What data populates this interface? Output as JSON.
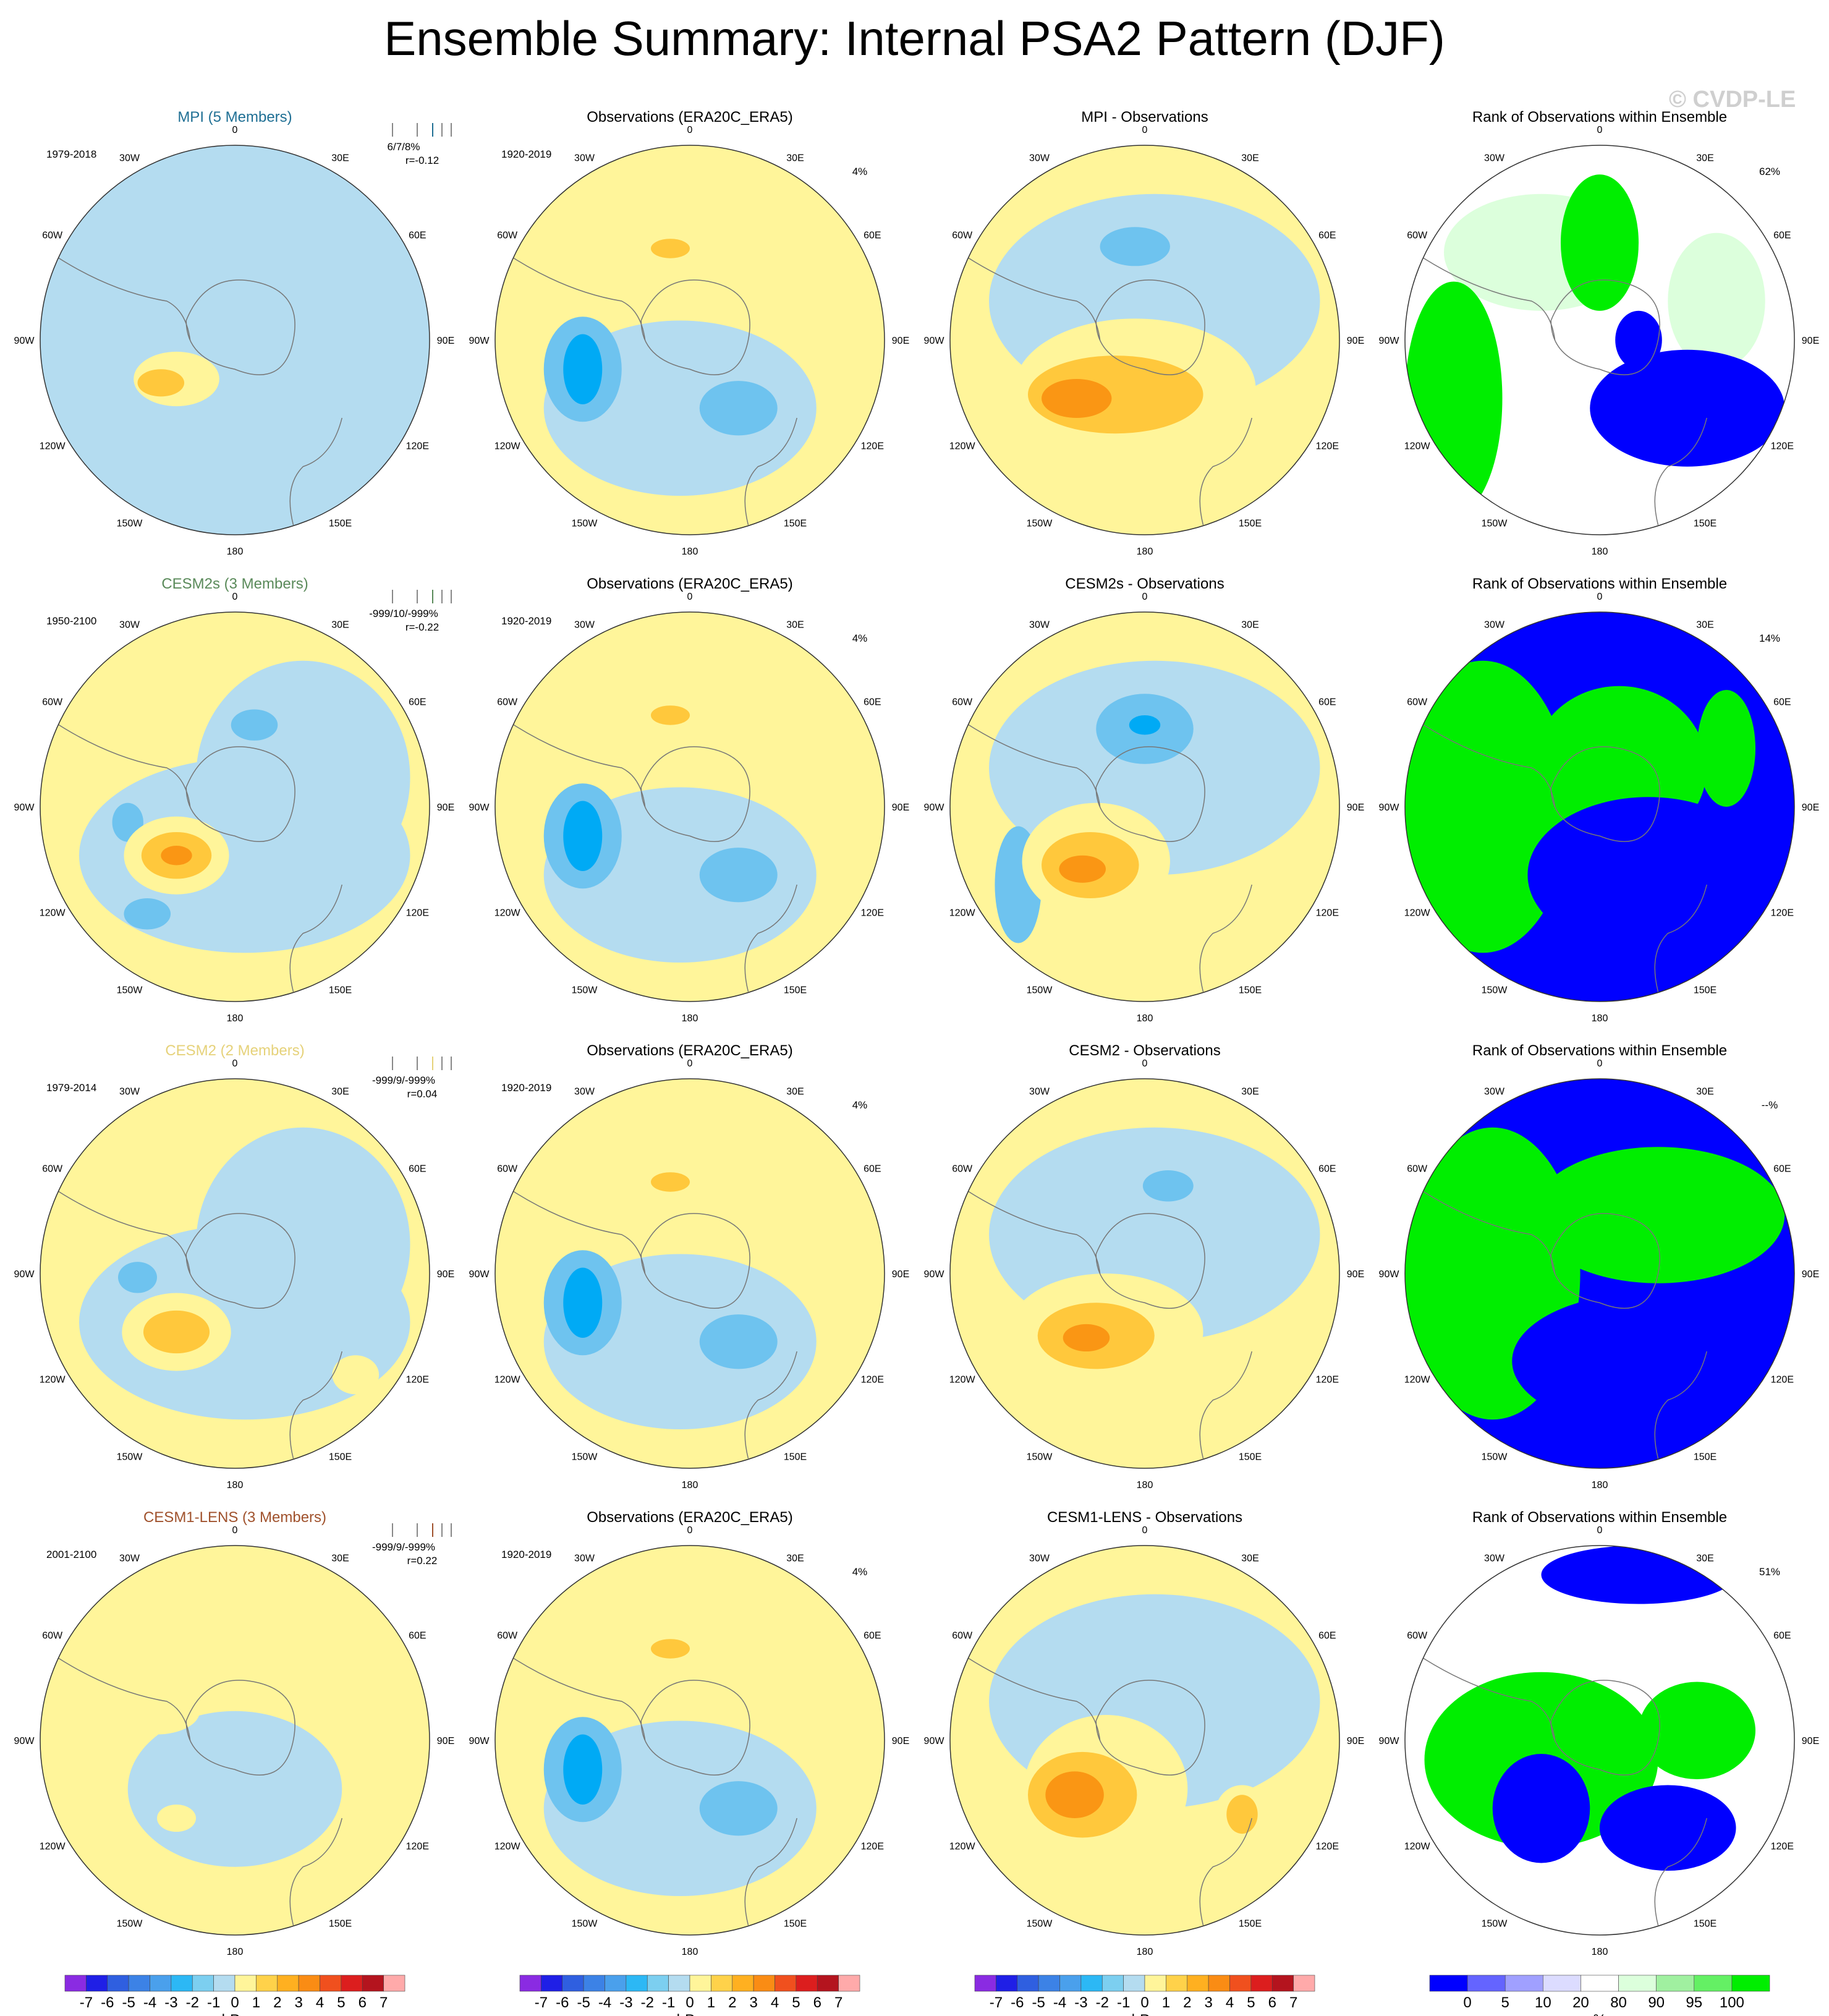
{
  "title": "Ensemble Summary: Internal PSA2 Pattern (DJF)",
  "watermark": "© CVDP-LE",
  "lon_labels": [
    "0",
    "30E",
    "60E",
    "90E",
    "120E",
    "150E",
    "180",
    "150W",
    "120W",
    "90W",
    "60W",
    "30W"
  ],
  "colors": {
    "model_text": [
      "#1f6f94",
      "#5a8a5a",
      "#e6d27a",
      "#a0522d"
    ],
    "rank_blue": "#0000ff",
    "rank_green": "#00ee00",
    "rank_palegreen": "#dcffdc",
    "ocean_neg1": "#b4dcf0",
    "pos1": "#fff59a",
    "pos2": "#ffc83c",
    "pos3": "#fa9614",
    "neg2": "#6ec3ef",
    "neg3": "#00aaf5",
    "neg4": "#4a90d9"
  },
  "rows": [
    {
      "model": {
        "title": "MPI (5 Members)",
        "years": "1979-2018",
        "stats": "6/7/8%",
        "r": "r=-0.12"
      },
      "obs": {
        "title": "Observations (ERA20C_ERA5)",
        "years": "1920-2019",
        "pct": "4%"
      },
      "diff": {
        "title": "MPI - Observations"
      },
      "rank": {
        "title": "Rank of Observations within Ensemble",
        "pct": "62%"
      }
    },
    {
      "model": {
        "title": "CESM2s (3 Members)",
        "years": "1950-2100",
        "stats": "-999/10/-999%",
        "r": "r=-0.22"
      },
      "obs": {
        "title": "Observations (ERA20C_ERA5)",
        "years": "1920-2019",
        "pct": "4%"
      },
      "diff": {
        "title": "CESM2s - Observations"
      },
      "rank": {
        "title": "Rank of Observations within Ensemble",
        "pct": "14%"
      }
    },
    {
      "model": {
        "title": "CESM2 (2 Members)",
        "years": "1979-2014",
        "stats": "-999/9/-999%",
        "r": "r=0.04"
      },
      "obs": {
        "title": "Observations (ERA20C_ERA5)",
        "years": "1920-2019",
        "pct": "4%"
      },
      "diff": {
        "title": "CESM2 - Observations"
      },
      "rank": {
        "title": "Rank of Observations within Ensemble",
        "pct": "--%"
      }
    },
    {
      "model": {
        "title": "CESM1-LENS (3 Members)",
        "years": "2001-2100",
        "stats": "-999/9/-999%",
        "r": "r=0.22"
      },
      "obs": {
        "title": "Observations (ERA20C_ERA5)",
        "years": "1920-2019",
        "pct": "4%"
      },
      "diff": {
        "title": "CESM1-LENS - Observations"
      },
      "rank": {
        "title": "Rank of Observations within Ensemble",
        "pct": "51%"
      }
    }
  ],
  "colorbar_hpa": {
    "labels": [
      "-7",
      "-6",
      "-5",
      "-4",
      "-3",
      "-2",
      "-1",
      "0",
      "1",
      "2",
      "3",
      "4",
      "5",
      "6",
      "7"
    ],
    "colors": [
      "#8a2be2",
      "#1f1fe6",
      "#2f5fe0",
      "#3c82e6",
      "#4aa0ec",
      "#2cb8f5",
      "#7ccff0",
      "#b4dcf0",
      "#fff59a",
      "#ffd24a",
      "#ffb020",
      "#fa8c14",
      "#f0501e",
      "#dc1e1e",
      "#b4141e",
      "#ffaaaa"
    ],
    "unit": "hPa"
  },
  "colorbar_pct": {
    "labels": [
      "0",
      "5",
      "10",
      "20",
      "80",
      "90",
      "95",
      "100"
    ],
    "colors": [
      "#0000ff",
      "#6464ff",
      "#a0a0ff",
      "#dcdcff",
      "#ffffff",
      "#dcffdc",
      "#a0f0a0",
      "#64f064",
      "#00ee00"
    ],
    "unit": "%"
  },
  "chart_data": {
    "type": "heatmap",
    "panels": "4 rows x 4 columns of south-polar stereographic maps",
    "columns": [
      "model",
      "obs",
      "diff",
      "rank"
    ],
    "field_units": "hPa",
    "rank_units": "%"
  }
}
